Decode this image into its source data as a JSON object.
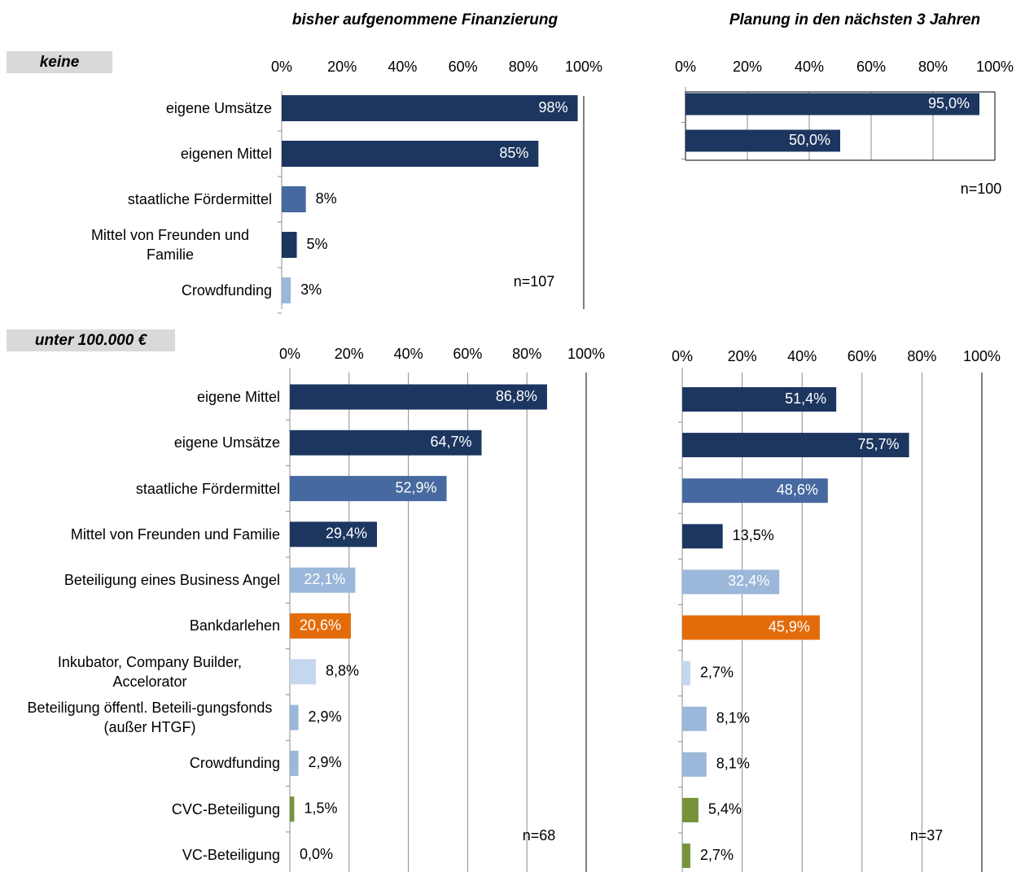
{
  "column_titles": [
    "bisher aufgenommene Finanzierung",
    "Planung in den nächsten 3 Jahren"
  ],
  "group_labels": [
    "keine",
    "unter 100.000 €"
  ],
  "chart_data": [
    {
      "type": "bar",
      "orientation": "horizontal",
      "grid": false,
      "categories": [
        "eigene Umsätze",
        "eigenen Mittel",
        "staatliche Fördermittel",
        "Mittel von Freunden und Familie",
        "Crowdfunding"
      ],
      "values": [
        98,
        85,
        8,
        5,
        3
      ],
      "value_labels": [
        "98%",
        "85%",
        "8%",
        "5%",
        "3%"
      ],
      "colors": [
        "#1c3660",
        "#1c3660",
        "#466a9f",
        "#1c3660",
        "#9bb7d9"
      ],
      "xlim": [
        0,
        100
      ],
      "xticks": [
        {
          "value": 0,
          "label": "0%"
        },
        {
          "value": 20,
          "label": "20%"
        },
        {
          "value": 40,
          "label": "40%"
        },
        {
          "value": 60,
          "label": "60%"
        },
        {
          "value": 80,
          "label": "80%"
        },
        {
          "value": 100,
          "label": "100%"
        }
      ],
      "annotation": "n=107"
    },
    {
      "type": "bar",
      "orientation": "horizontal",
      "grid": true,
      "categories": [
        null,
        null
      ],
      "values": [
        95.0,
        50.0
      ],
      "value_labels": [
        "95,0%",
        "50,0%"
      ],
      "colors": [
        "#1c3660",
        "#1c3660"
      ],
      "xlim": [
        0,
        100
      ],
      "xticks": [
        {
          "value": 0,
          "label": "0%"
        },
        {
          "value": 20,
          "label": "20%"
        },
        {
          "value": 40,
          "label": "40%"
        },
        {
          "value": 60,
          "label": "60%"
        },
        {
          "value": 80,
          "label": "80%"
        },
        {
          "value": 100,
          "label": "100%"
        }
      ],
      "annotation": "n=100"
    },
    {
      "type": "bar",
      "orientation": "horizontal",
      "grid": true,
      "categories": [
        "eigene Mittel",
        "eigene Umsätze",
        "staatliche Fördermittel",
        "Mittel von Freunden und Familie",
        "Beteiligung eines Business Angel",
        "Bankdarlehen",
        "Inkubator, Company Builder, Accelorator",
        "Beteiligung öffentl. Beteili-gungsfonds (außer HTGF)",
        "Crowdfunding",
        "CVC-Beteiligung",
        "VC-Beteiligung"
      ],
      "values": [
        86.8,
        64.7,
        52.9,
        29.4,
        22.1,
        20.6,
        8.8,
        2.9,
        2.9,
        1.5,
        0.0
      ],
      "value_labels": [
        "86,8%",
        "64,7%",
        "52,9%",
        "29,4%",
        "22,1%",
        "20,6%",
        "8,8%",
        "2,9%",
        "2,9%",
        "1,5%",
        "0,0%"
      ],
      "colors": [
        "#1c3660",
        "#1c3660",
        "#466a9f",
        "#1c3660",
        "#9bb7d9",
        "#e36c0a",
        "#c5d7ee",
        "#9bb7d9",
        "#9bb7d9",
        "#76933c",
        "#76933c"
      ],
      "xlim": [
        0,
        100
      ],
      "xticks": [
        {
          "value": 0,
          "label": "0%"
        },
        {
          "value": 20,
          "label": "20%"
        },
        {
          "value": 40,
          "label": "40%"
        },
        {
          "value": 60,
          "label": "60%"
        },
        {
          "value": 80,
          "label": "80%"
        },
        {
          "value": 100,
          "label": "100%"
        }
      ],
      "annotation": "n=68"
    },
    {
      "type": "bar",
      "orientation": "horizontal",
      "grid": true,
      "categories": [
        null,
        null,
        null,
        null,
        null,
        null,
        null,
        null,
        null,
        null,
        null
      ],
      "values": [
        51.4,
        75.7,
        48.6,
        13.5,
        32.4,
        45.9,
        2.7,
        8.1,
        8.1,
        5.4,
        2.7
      ],
      "value_labels": [
        "51,4%",
        "75,7%",
        "48,6%",
        "13,5%",
        "32,4%",
        "45,9%",
        "2,7%",
        "8,1%",
        "8,1%",
        "5,4%",
        "2,7%"
      ],
      "colors": [
        "#1c3660",
        "#1c3660",
        "#466a9f",
        "#1c3660",
        "#9bb7d9",
        "#e36c0a",
        "#c5d7ee",
        "#9bb7d9",
        "#9bb7d9",
        "#76933c",
        "#76933c"
      ],
      "xlim": [
        0,
        100
      ],
      "xticks": [
        {
          "value": 0,
          "label": "0%"
        },
        {
          "value": 20,
          "label": "20%"
        },
        {
          "value": 40,
          "label": "40%"
        },
        {
          "value": 60,
          "label": "60%"
        },
        {
          "value": 80,
          "label": "80%"
        },
        {
          "value": 100,
          "label": "100%"
        }
      ],
      "annotation": "n=37"
    }
  ]
}
